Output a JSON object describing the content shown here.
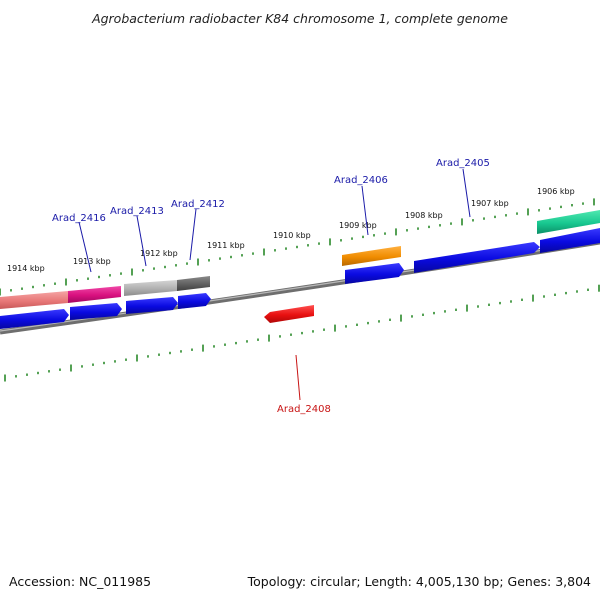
{
  "title": "Agrobacterium radiobacter K84 chromosome 1, complete genome",
  "footer": {
    "accession": "Accession: NC_011985",
    "summary": "Topology: circular; Length: 4,005,130 bp; Genes: 3,804"
  },
  "colors": {
    "backbone": "#7a7a7a",
    "tick": "#2a8a2a",
    "label_blue": "#1a1aa8",
    "label_red": "#c81414",
    "cds_blue": "#0a0ae0"
  },
  "scale": {
    "labels": [
      {
        "text": "1906 kbp"
      },
      {
        "text": "1907 kbp"
      },
      {
        "text": "1908 kbp"
      },
      {
        "text": "1909 kbp"
      },
      {
        "text": "1910 kbp"
      },
      {
        "text": "1911 kbp"
      },
      {
        "text": "1912 kbp"
      },
      {
        "text": "1913 kbp"
      },
      {
        "text": "1914 kbp"
      }
    ]
  },
  "gene_labels": [
    {
      "text": "Arad_2405",
      "color": "#1a1aa8"
    },
    {
      "text": "Arad_2406",
      "color": "#1a1aa8"
    },
    {
      "text": "Arad_2408",
      "color": "#c81414"
    },
    {
      "text": "Arad_2412",
      "color": "#1a1aa8"
    },
    {
      "text": "Arad_2413",
      "color": "#1a1aa8"
    },
    {
      "text": "Arad_2416",
      "color": "#1a1aa8"
    }
  ],
  "feature_colors": {
    "salmon": "#f08a8a",
    "magenta": "#e0188a",
    "light_gray": "#b4b4b4",
    "dark_gray": "#6a6a6a",
    "orange": "#f08c00",
    "teal": "#18c890",
    "red": "#e81010",
    "blue": "#0a0ae0"
  }
}
